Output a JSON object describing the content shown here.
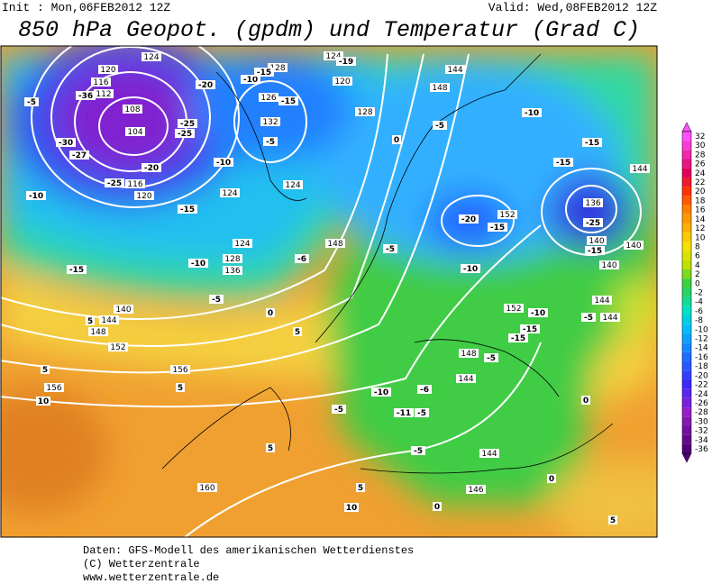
{
  "header": {
    "init": "Init : Mon,06FEB2012 12Z",
    "valid": "Valid: Wed,08FEB2012 12Z",
    "title": "850 hPa Geopot. (gpdm) und Temperatur (Grad C)"
  },
  "colorbar": {
    "ticks": [
      32,
      30,
      28,
      26,
      24,
      22,
      20,
      18,
      16,
      14,
      12,
      10,
      8,
      6,
      4,
      2,
      0,
      -2,
      -4,
      -6,
      -8,
      -10,
      -12,
      -14,
      -16,
      -18,
      -20,
      -22,
      -24,
      -26,
      -28,
      -30,
      -32,
      -34,
      -36
    ]
  },
  "map": {
    "geopotential_labels": [
      "104",
      "108",
      "112",
      "116",
      "120",
      "124",
      "120",
      "116",
      "124",
      "124",
      "128",
      "132",
      "126",
      "128",
      "120",
      "124",
      "124",
      "128",
      "136",
      "148",
      "140",
      "144",
      "148",
      "152",
      "156",
      "156",
      "160",
      "144",
      "148",
      "152",
      "136",
      "140",
      "140",
      "140",
      "144",
      "144",
      "144",
      "152",
      "148",
      "144",
      "144",
      "146"
    ],
    "temperature_labels": [
      "-5",
      "-30",
      "-36",
      "-27",
      "-25",
      "-25",
      "-20",
      "-20",
      "-25",
      "-15",
      "-10",
      "-15",
      "-10",
      "-5",
      "0",
      "-6",
      "-10",
      "-15",
      "-5",
      "-10",
      "-15",
      "-19",
      "0",
      "-5",
      "-10",
      "-15",
      "-15",
      "-20",
      "-15",
      "-25",
      "-15",
      "-10",
      "-5",
      "5",
      "5",
      "10",
      "5",
      "5",
      "5",
      "-10",
      "-6",
      "-11",
      "-5",
      "-5",
      "-5",
      "0",
      "0",
      "0",
      "5",
      "10",
      "5",
      "-10",
      "-15",
      "-5",
      "-15",
      "-5"
    ]
  },
  "footer": {
    "lines": [
      "Daten: GFS-Modell des amerikanischen Wetterdienstes",
      "(C) Wetterzentrale",
      "www.wetterzentrale.de"
    ]
  }
}
